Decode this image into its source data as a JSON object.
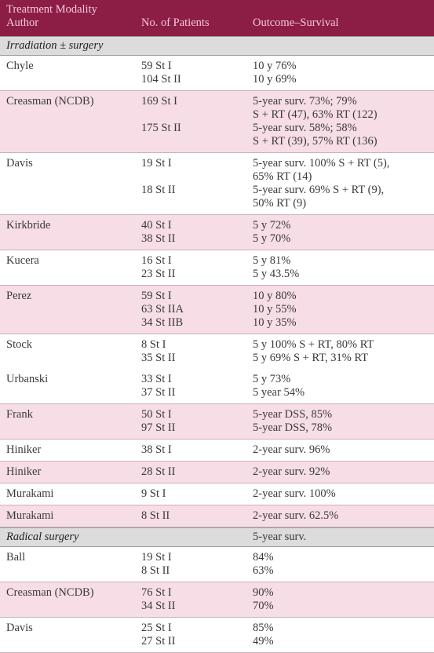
{
  "header": {
    "author_heading": [
      "Treatment Modality",
      "Author"
    ],
    "patients_heading": "No. of Patients",
    "outcome_heading": "Outcome–Survival"
  },
  "sections": [
    {
      "title": "Irradiation ± surgery",
      "blocks": [
        {
          "entries": [
            {
              "author": "Chyle",
              "groups": [
                {
                  "patients": [
                    "59 St I",
                    "104 St II"
                  ],
                  "outcomes": [
                    "10 y 76%",
                    "10 y 69%"
                  ]
                }
              ]
            }
          ]
        },
        {
          "entries": [
            {
              "author": "Creasman (NCDB)",
              "groups": [
                {
                  "patients": [
                    "169 St I"
                  ],
                  "outcomes": [
                    "5-year surv. 73%; 79%",
                    "S + RT (47), 63% RT (122)"
                  ]
                },
                {
                  "patients": [
                    "175 St II"
                  ],
                  "outcomes": [
                    "5-year surv. 58%; 58%",
                    "S + RT (39), 57% RT (136)"
                  ]
                }
              ]
            }
          ]
        },
        {
          "entries": [
            {
              "author": "Davis",
              "groups": [
                {
                  "patients": [
                    "19 St I"
                  ],
                  "outcomes": [
                    "5-year surv. 100% S + RT (5),",
                    "65% RT (14)"
                  ]
                },
                {
                  "patients": [
                    "18 St II"
                  ],
                  "outcomes": [
                    "5-year surv. 69% S + RT (9),",
                    "50% RT (9)"
                  ]
                }
              ]
            }
          ]
        },
        {
          "entries": [
            {
              "author": "Kirkbride",
              "groups": [
                {
                  "patients": [
                    "40 St I",
                    "38 St II"
                  ],
                  "outcomes": [
                    "5 y 72%",
                    "5 y 70%"
                  ]
                }
              ]
            }
          ]
        },
        {
          "entries": [
            {
              "author": "Kucera",
              "groups": [
                {
                  "patients": [
                    "16 St I",
                    "23 St II"
                  ],
                  "outcomes": [
                    "5 y 81%",
                    "5 y 43.5%"
                  ]
                }
              ]
            }
          ]
        },
        {
          "entries": [
            {
              "author": "Perez",
              "groups": [
                {
                  "patients": [
                    "59 St I",
                    "63 St IIA",
                    "34 St IIB"
                  ],
                  "outcomes": [
                    "10 y 80%",
                    "10 y 55%",
                    "10 y 35%"
                  ]
                }
              ]
            }
          ]
        },
        {
          "entries": [
            {
              "author": "Stock",
              "groups": [
                {
                  "patients": [
                    "8 St I",
                    "35 St II"
                  ],
                  "outcomes": [
                    "5 y 100% S + RT, 80% RT",
                    "5 y 69% S + RT, 31% RT"
                  ]
                }
              ]
            },
            {
              "author": "Urbanski",
              "groups": [
                {
                  "patients": [
                    "33 St I",
                    "37 St II"
                  ],
                  "outcomes": [
                    "5 y 73%",
                    "5 year 54%"
                  ]
                }
              ]
            }
          ]
        },
        {
          "entries": [
            {
              "author": "Frank",
              "groups": [
                {
                  "patients": [
                    "50 St I",
                    "97 St II"
                  ],
                  "outcomes": [
                    "5-year DSS, 85%",
                    "5-year DSS, 78%"
                  ]
                }
              ]
            }
          ]
        },
        {
          "entries": [
            {
              "author": "Hiniker",
              "groups": [
                {
                  "patients": [
                    "38 St I"
                  ],
                  "outcomes": [
                    "2-year surv. 96%"
                  ]
                }
              ]
            }
          ]
        },
        {
          "entries": [
            {
              "author": "Hiniker",
              "groups": [
                {
                  "patients": [
                    "28 St II"
                  ],
                  "outcomes": [
                    "2-year surv. 92%"
                  ]
                }
              ]
            }
          ]
        },
        {
          "entries": [
            {
              "author": "Murakami",
              "groups": [
                {
                  "patients": [
                    "9 St I"
                  ],
                  "outcomes": [
                    "2-year surv. 100%"
                  ]
                }
              ]
            }
          ]
        },
        {
          "entries": [
            {
              "author": "Murakami",
              "groups": [
                {
                  "patients": [
                    "8 St II"
                  ],
                  "outcomes": [
                    "2-year surv. 62.5%"
                  ]
                }
              ]
            }
          ]
        }
      ]
    },
    {
      "title": "Radical surgery",
      "note": "5-year surv.",
      "blocks": [
        {
          "entries": [
            {
              "author": "Ball",
              "groups": [
                {
                  "patients": [
                    "19 St I",
                    "8 St II"
                  ],
                  "outcomes": [
                    "84%",
                    "63%"
                  ]
                }
              ]
            }
          ]
        },
        {
          "entries": [
            {
              "author": "Creasman (NCDB)",
              "groups": [
                {
                  "patients": [
                    "76 St I",
                    "34 St II"
                  ],
                  "outcomes": [
                    "90%",
                    "70%"
                  ]
                }
              ]
            }
          ]
        },
        {
          "entries": [
            {
              "author": "Davis",
              "groups": [
                {
                  "patients": [
                    "25 St I",
                    "27 St II"
                  ],
                  "outcomes": [
                    "85%",
                    "49%"
                  ]
                }
              ]
            }
          ]
        }
      ]
    }
  ]
}
